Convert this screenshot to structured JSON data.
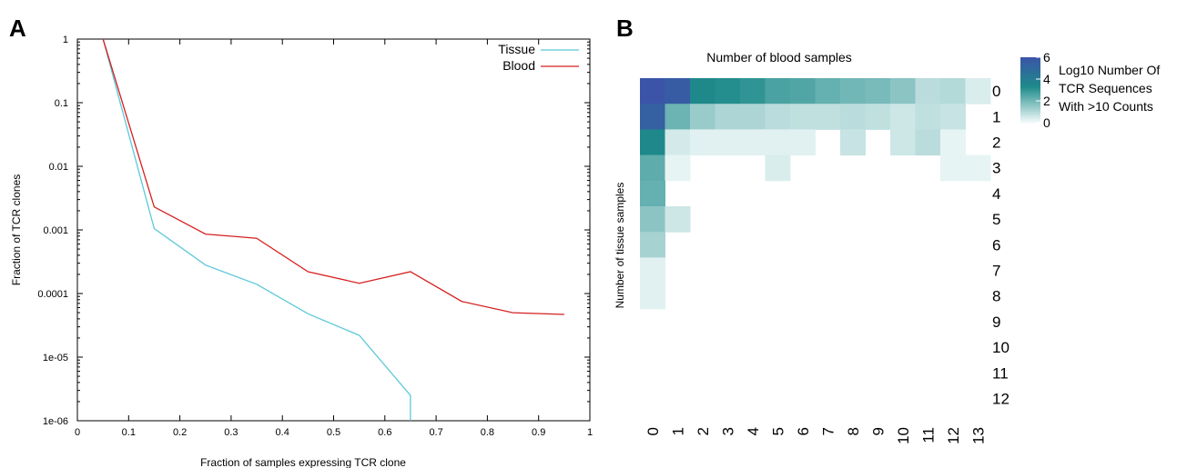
{
  "colors": {
    "tissue": "#5bc8d8",
    "blood": "#d62020",
    "heat_high": "#3b54a8",
    "heat_mid": "#1e8a8a",
    "heat_low": "#f4fbfb"
  },
  "panel_a_label": "A",
  "panel_b_label": "B",
  "chart_data": [
    {
      "type": "line",
      "xlabel": "Fraction of samples expressing TCR clone",
      "ylabel": "Fraction of TCR clones",
      "xlim": [
        0,
        1
      ],
      "ylim": [
        1e-06,
        1
      ],
      "yscale": "log",
      "x_tick_labels": [
        "0",
        "0.1",
        "0.2",
        "0.3",
        "0.4",
        "0.5",
        "0.6",
        "0.7",
        "0.8",
        "0.9",
        "1"
      ],
      "y_tick_labels": [
        "1e-06",
        "1e-05",
        "0.0001",
        "0.001",
        "0.01",
        "0.1",
        "1"
      ],
      "legend_position": "top-right",
      "series": [
        {
          "name": "Tissue",
          "color": "#5bc8d8",
          "x": [
            0.05,
            0.15,
            0.25,
            0.35,
            0.45,
            0.55,
            0.65,
            0.65
          ],
          "y": [
            1,
            0.00105,
            0.00028,
            0.00014,
            4.8e-05,
            2.2e-05,
            2.5e-06,
            1e-06
          ]
        },
        {
          "name": "Blood",
          "color": "#d62020",
          "x": [
            0.05,
            0.15,
            0.25,
            0.35,
            0.45,
            0.55,
            0.65,
            0.75,
            0.85,
            0.95
          ],
          "y": [
            1,
            0.0023,
            0.00086,
            0.00074,
            0.00022,
            0.000145,
            0.00022,
            7.5e-05,
            5e-05,
            4.7e-05
          ]
        }
      ]
    },
    {
      "type": "heatmap",
      "title": "Number of blood samples",
      "ylabel": "Number of tissue samples",
      "x_categories": [
        "0",
        "1",
        "2",
        "3",
        "4",
        "5",
        "6",
        "7",
        "8",
        "9",
        "10",
        "11",
        "12",
        "13"
      ],
      "y_categories": [
        "0",
        "1",
        "2",
        "3",
        "4",
        "5",
        "6",
        "7",
        "8",
        "9",
        "10",
        "11",
        "12"
      ],
      "colorbar": {
        "title_lines": [
          "Log10 Number Of",
          "TCR Sequences",
          "With >10 Counts"
        ],
        "tick_labels": [
          "6",
          "4",
          "2",
          "0"
        ],
        "range": [
          0,
          6
        ]
      },
      "values": [
        [
          6.0,
          5.6,
          3.4,
          3.2,
          3.0,
          2.6,
          2.5,
          2.2,
          2.0,
          1.9,
          1.6,
          0.9,
          1.0,
          0.4
        ],
        [
          5.4,
          2.1,
          1.4,
          1.1,
          1.1,
          0.9,
          0.8,
          0.8,
          0.9,
          0.8,
          0.6,
          0.8,
          0.7,
          null
        ],
        [
          3.4,
          0.5,
          0.3,
          0.3,
          0.3,
          0.3,
          0.3,
          null,
          0.7,
          null,
          0.6,
          0.9,
          0.2,
          null
        ],
        [
          2.3,
          0.2,
          null,
          null,
          null,
          0.4,
          null,
          null,
          null,
          null,
          null,
          null,
          0.2,
          0.2
        ],
        [
          2.2,
          null,
          null,
          null,
          null,
          null,
          null,
          null,
          null,
          null,
          null,
          null,
          null,
          null
        ],
        [
          1.6,
          0.6,
          null,
          null,
          null,
          null,
          null,
          null,
          null,
          null,
          null,
          null,
          null,
          null
        ],
        [
          1.2,
          null,
          null,
          null,
          null,
          null,
          null,
          null,
          null,
          null,
          null,
          null,
          null,
          null
        ],
        [
          0.3,
          null,
          null,
          null,
          null,
          null,
          null,
          null,
          null,
          null,
          null,
          null,
          null,
          null
        ],
        [
          0.3,
          null,
          null,
          null,
          null,
          null,
          null,
          null,
          null,
          null,
          null,
          null,
          null,
          null
        ],
        [
          null,
          null,
          null,
          null,
          null,
          null,
          null,
          null,
          null,
          null,
          null,
          null,
          null,
          null
        ],
        [
          null,
          null,
          null,
          null,
          null,
          null,
          null,
          null,
          null,
          null,
          null,
          null,
          null,
          null
        ],
        [
          null,
          null,
          null,
          null,
          null,
          null,
          null,
          null,
          null,
          null,
          null,
          null,
          null,
          null
        ],
        [
          null,
          null,
          null,
          null,
          null,
          null,
          null,
          null,
          null,
          null,
          null,
          null,
          null,
          null
        ]
      ]
    }
  ]
}
